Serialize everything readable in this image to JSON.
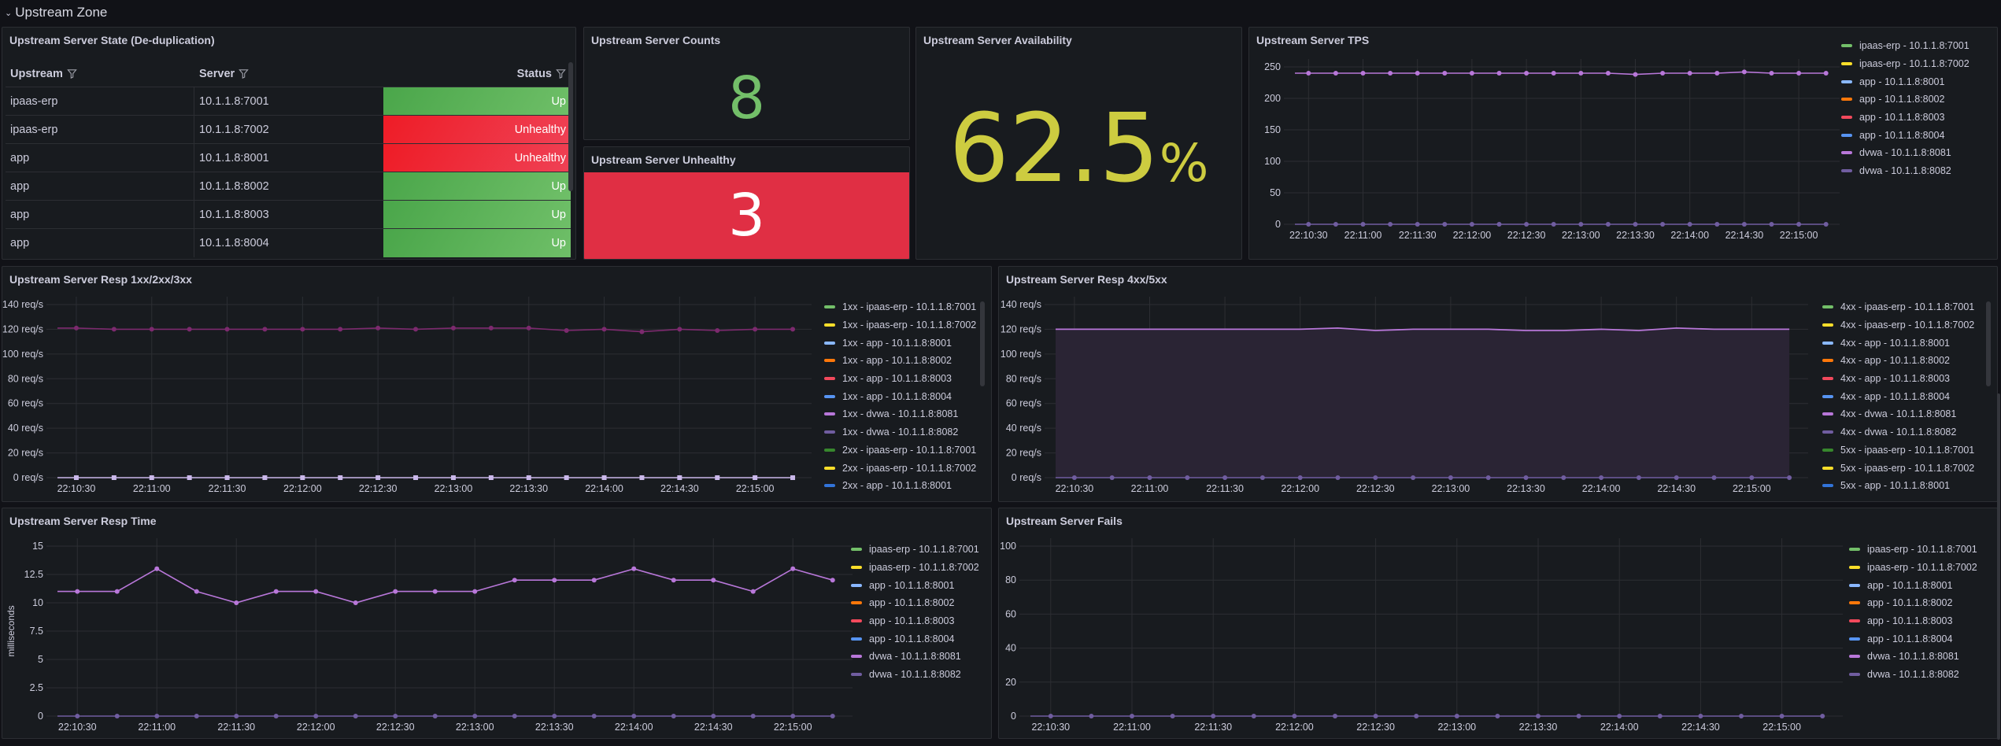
{
  "row": {
    "title": "Upstream Zone",
    "collapse_icon": "chevron-down-icon"
  },
  "colors": {
    "panel_bg": "#181b1f",
    "up": "#56a64b",
    "unhealthy": "#f2495c",
    "count_value": "#73bf69",
    "availability_value": "#cdcc40",
    "unhealthy_bg": "#e02f44"
  },
  "state_table": {
    "title": "Upstream Server State (De-duplication)",
    "columns": [
      "Upstream",
      "Server",
      "Status"
    ],
    "rows": [
      {
        "upstream": "ipaas-erp",
        "server": "10.1.1.8:7001",
        "status": "Up"
      },
      {
        "upstream": "ipaas-erp",
        "server": "10.1.1.8:7002",
        "status": "Unhealthy"
      },
      {
        "upstream": "app",
        "server": "10.1.1.8:8001",
        "status": "Unhealthy"
      },
      {
        "upstream": "app",
        "server": "10.1.1.8:8002",
        "status": "Up"
      },
      {
        "upstream": "app",
        "server": "10.1.1.8:8003",
        "status": "Up"
      },
      {
        "upstream": "app",
        "server": "10.1.1.8:8004",
        "status": "Up"
      }
    ]
  },
  "counts": {
    "title": "Upstream Server Counts",
    "value": "8"
  },
  "unhealthy": {
    "title": "Upstream Server Unhealthy",
    "value": "3"
  },
  "availability": {
    "title": "Upstream Server Availability",
    "value": "62.5",
    "unit": "%"
  },
  "chart_data": [
    {
      "id": "tps",
      "type": "line",
      "title": "Upstream Server TPS",
      "ylim": [
        0,
        250
      ],
      "yticks": [
        0,
        50,
        100,
        150,
        200,
        250
      ],
      "yunit": "",
      "ylabel": "",
      "x": [
        "22:10:30",
        "22:10:45",
        "22:11:00",
        "22:11:15",
        "22:11:30",
        "22:11:45",
        "22:12:00",
        "22:12:15",
        "22:12:30",
        "22:12:45",
        "22:13:00",
        "22:13:15",
        "22:13:30",
        "22:13:45",
        "22:14:00",
        "22:14:15",
        "22:14:30",
        "22:14:45",
        "22:15:00",
        "22:15:15"
      ],
      "xticks": [
        "22:10:30",
        "22:11:00",
        "22:11:30",
        "22:12:00",
        "22:12:30",
        "22:13:00",
        "22:13:30",
        "22:14:00",
        "22:14:30",
        "22:15:00"
      ],
      "legend": [
        {
          "name": "ipaas-erp - 10.1.1.8:7001",
          "color": "#73bf69"
        },
        {
          "name": "ipaas-erp - 10.1.1.8:7002",
          "color": "#fade2a"
        },
        {
          "name": "app - 10.1.1.8:8001",
          "color": "#8ab8ff"
        },
        {
          "name": "app - 10.1.1.8:8002",
          "color": "#ff780a"
        },
        {
          "name": "app - 10.1.1.8:8003",
          "color": "#f2495c"
        },
        {
          "name": "app - 10.1.1.8:8004",
          "color": "#5794f2"
        },
        {
          "name": "dvwa - 10.1.1.8:8081",
          "color": "#b877d9"
        },
        {
          "name": "dvwa - 10.1.1.8:8082",
          "color": "#705da0"
        }
      ],
      "series": [
        {
          "name": "dvwa - 10.1.1.8:8081",
          "color": "#b877d9",
          "values": [
            240,
            240,
            240,
            240,
            240,
            240,
            240,
            240,
            240,
            240,
            240,
            240,
            238,
            240,
            240,
            240,
            242,
            240,
            240,
            240
          ]
        },
        {
          "name": "dvwa - 10.1.1.8:8082",
          "color": "#705da0",
          "values": [
            0,
            0,
            0,
            0,
            0,
            0,
            0,
            0,
            0,
            0,
            0,
            0,
            0,
            0,
            0,
            0,
            0,
            0,
            0,
            0
          ]
        }
      ]
    },
    {
      "id": "resp123",
      "type": "line",
      "title": "Upstream Server Resp 1xx/2xx/3xx",
      "ylim": [
        0,
        140
      ],
      "yticks": [
        0,
        20,
        40,
        60,
        80,
        100,
        120,
        140
      ],
      "yunit": " req/s",
      "ylabel": "",
      "x": [
        "22:10:30",
        "22:10:45",
        "22:11:00",
        "22:11:15",
        "22:11:30",
        "22:11:45",
        "22:12:00",
        "22:12:15",
        "22:12:30",
        "22:12:45",
        "22:13:00",
        "22:13:15",
        "22:13:30",
        "22:13:45",
        "22:14:00",
        "22:14:15",
        "22:14:30",
        "22:14:45",
        "22:15:00",
        "22:15:15"
      ],
      "xticks": [
        "22:10:30",
        "22:11:00",
        "22:11:30",
        "22:12:00",
        "22:12:30",
        "22:13:00",
        "22:13:30",
        "22:14:00",
        "22:14:30",
        "22:15:00"
      ],
      "legend": [
        {
          "name": "1xx - ipaas-erp - 10.1.1.8:7001",
          "color": "#73bf69"
        },
        {
          "name": "1xx - ipaas-erp - 10.1.1.8:7002",
          "color": "#fade2a"
        },
        {
          "name": "1xx - app - 10.1.1.8:8001",
          "color": "#8ab8ff"
        },
        {
          "name": "1xx - app - 10.1.1.8:8002",
          "color": "#ff780a"
        },
        {
          "name": "1xx - app - 10.1.1.8:8003",
          "color": "#f2495c"
        },
        {
          "name": "1xx - app - 10.1.1.8:8004",
          "color": "#5794f2"
        },
        {
          "name": "1xx - dvwa - 10.1.1.8:8081",
          "color": "#b877d9"
        },
        {
          "name": "1xx - dvwa - 10.1.1.8:8082",
          "color": "#705da0"
        },
        {
          "name": "2xx - ipaas-erp - 10.1.1.8:7001",
          "color": "#37872d"
        },
        {
          "name": "2xx - ipaas-erp - 10.1.1.8:7002",
          "color": "#fade2a"
        },
        {
          "name": "2xx - app - 10.1.1.8:8001",
          "color": "#3274d9"
        }
      ],
      "series": [
        {
          "name": "2xx - dvwa - 10.1.1.8:8081",
          "color": "#7c2a6e",
          "values": [
            121,
            120,
            120,
            120,
            120,
            120,
            120,
            120,
            121,
            120,
            121,
            121,
            121,
            119,
            120,
            118,
            120,
            119,
            120,
            120
          ]
        },
        {
          "name": "1xx - dvwa - 10.1.1.8:8082",
          "color": "#cab8ea",
          "values": [
            0,
            0,
            0,
            0,
            0,
            0,
            0,
            0,
            0,
            0,
            0,
            0,
            0,
            0,
            0,
            0,
            0,
            0,
            0,
            0
          ],
          "marker": "square"
        }
      ],
      "legend_scroll": true
    },
    {
      "id": "resp45",
      "type": "area",
      "title": "Upstream Server Resp 4xx/5xx",
      "ylim": [
        0,
        140
      ],
      "yticks": [
        0,
        20,
        40,
        60,
        80,
        100,
        120,
        140
      ],
      "yunit": " req/s",
      "ylabel": "",
      "x": [
        "22:10:30",
        "22:10:45",
        "22:11:00",
        "22:11:15",
        "22:11:30",
        "22:11:45",
        "22:12:00",
        "22:12:15",
        "22:12:30",
        "22:12:45",
        "22:13:00",
        "22:13:15",
        "22:13:30",
        "22:13:45",
        "22:14:00",
        "22:14:15",
        "22:14:30",
        "22:14:45",
        "22:15:00",
        "22:15:15"
      ],
      "xticks": [
        "22:10:30",
        "22:11:00",
        "22:11:30",
        "22:12:00",
        "22:12:30",
        "22:13:00",
        "22:13:30",
        "22:14:00",
        "22:14:30",
        "22:15:00"
      ],
      "legend": [
        {
          "name": "4xx - ipaas-erp - 10.1.1.8:7001",
          "color": "#73bf69"
        },
        {
          "name": "4xx - ipaas-erp - 10.1.1.8:7002",
          "color": "#fade2a"
        },
        {
          "name": "4xx - app - 10.1.1.8:8001",
          "color": "#8ab8ff"
        },
        {
          "name": "4xx - app - 10.1.1.8:8002",
          "color": "#ff780a"
        },
        {
          "name": "4xx - app - 10.1.1.8:8003",
          "color": "#f2495c"
        },
        {
          "name": "4xx - app - 10.1.1.8:8004",
          "color": "#5794f2"
        },
        {
          "name": "4xx - dvwa - 10.1.1.8:8081",
          "color": "#b877d9"
        },
        {
          "name": "4xx - dvwa - 10.1.1.8:8082",
          "color": "#705da0"
        },
        {
          "name": "5xx - ipaas-erp - 10.1.1.8:7001",
          "color": "#37872d"
        },
        {
          "name": "5xx - ipaas-erp - 10.1.1.8:7002",
          "color": "#fade2a"
        },
        {
          "name": "5xx - app - 10.1.1.8:8001",
          "color": "#3274d9"
        }
      ],
      "series": [
        {
          "name": "4xx - dvwa - 10.1.1.8:8081",
          "color": "#b877d9",
          "values": [
            120,
            120,
            120,
            120,
            120,
            120,
            120,
            121,
            119,
            120,
            120,
            120,
            119,
            119,
            120,
            119,
            121,
            120,
            120,
            120
          ],
          "fill": "#2a2434"
        },
        {
          "name": "4xx - dvwa - 10.1.1.8:8082",
          "color": "#705da0",
          "values": [
            0,
            0,
            0,
            0,
            0,
            0,
            0,
            0,
            0,
            0,
            0,
            0,
            0,
            0,
            0,
            0,
            0,
            0,
            0,
            0
          ]
        }
      ],
      "legend_scroll": true
    },
    {
      "id": "resptime",
      "type": "line",
      "title": "Upstream Server Resp Time",
      "ylim": [
        0,
        15
      ],
      "yticks": [
        0,
        2.5,
        5,
        7.5,
        10,
        12.5,
        15
      ],
      "yunit": "",
      "ylabel": "milliseconds",
      "x": [
        "22:10:30",
        "22:10:45",
        "22:11:00",
        "22:11:15",
        "22:11:30",
        "22:11:45",
        "22:12:00",
        "22:12:15",
        "22:12:30",
        "22:12:45",
        "22:13:00",
        "22:13:15",
        "22:13:30",
        "22:13:45",
        "22:14:00",
        "22:14:15",
        "22:14:30",
        "22:14:45",
        "22:15:00",
        "22:15:15"
      ],
      "xticks": [
        "22:10:30",
        "22:11:00",
        "22:11:30",
        "22:12:00",
        "22:12:30",
        "22:13:00",
        "22:13:30",
        "22:14:00",
        "22:14:30",
        "22:15:00"
      ],
      "legend": [
        {
          "name": "ipaas-erp - 10.1.1.8:7001",
          "color": "#73bf69"
        },
        {
          "name": "ipaas-erp - 10.1.1.8:7002",
          "color": "#fade2a"
        },
        {
          "name": "app - 10.1.1.8:8001",
          "color": "#8ab8ff"
        },
        {
          "name": "app - 10.1.1.8:8002",
          "color": "#ff780a"
        },
        {
          "name": "app - 10.1.1.8:8003",
          "color": "#f2495c"
        },
        {
          "name": "app - 10.1.1.8:8004",
          "color": "#5794f2"
        },
        {
          "name": "dvwa - 10.1.1.8:8081",
          "color": "#b877d9"
        },
        {
          "name": "dvwa - 10.1.1.8:8082",
          "color": "#705da0"
        }
      ],
      "series": [
        {
          "name": "dvwa - 10.1.1.8:8081",
          "color": "#b877d9",
          "values": [
            11,
            11,
            13,
            11,
            10,
            11,
            11,
            10,
            11,
            11,
            11,
            12,
            12,
            12,
            13,
            12,
            12,
            11,
            13,
            12
          ]
        },
        {
          "name": "dvwa - 10.1.1.8:8082",
          "color": "#705da0",
          "values": [
            0,
            0,
            0,
            0,
            0,
            0,
            0,
            0,
            0,
            0,
            0,
            0,
            0,
            0,
            0,
            0,
            0,
            0,
            0,
            0
          ]
        }
      ]
    },
    {
      "id": "fails",
      "type": "line",
      "title": "Upstream Server Fails",
      "ylim": [
        0,
        100
      ],
      "yticks": [
        0,
        20,
        40,
        60,
        80,
        100
      ],
      "yunit": "",
      "ylabel": "",
      "x": [
        "22:10:30",
        "22:10:45",
        "22:11:00",
        "22:11:15",
        "22:11:30",
        "22:11:45",
        "22:12:00",
        "22:12:15",
        "22:12:30",
        "22:12:45",
        "22:13:00",
        "22:13:15",
        "22:13:30",
        "22:13:45",
        "22:14:00",
        "22:14:15",
        "22:14:30",
        "22:14:45",
        "22:15:00",
        "22:15:15"
      ],
      "xticks": [
        "22:10:30",
        "22:11:00",
        "22:11:30",
        "22:12:00",
        "22:12:30",
        "22:13:00",
        "22:13:30",
        "22:14:00",
        "22:14:30",
        "22:15:00"
      ],
      "legend": [
        {
          "name": "ipaas-erp - 10.1.1.8:7001",
          "color": "#73bf69"
        },
        {
          "name": "ipaas-erp - 10.1.1.8:7002",
          "color": "#fade2a"
        },
        {
          "name": "app - 10.1.1.8:8001",
          "color": "#8ab8ff"
        },
        {
          "name": "app - 10.1.1.8:8002",
          "color": "#ff780a"
        },
        {
          "name": "app - 10.1.1.8:8003",
          "color": "#f2495c"
        },
        {
          "name": "app - 10.1.1.8:8004",
          "color": "#5794f2"
        },
        {
          "name": "dvwa - 10.1.1.8:8081",
          "color": "#b877d9"
        },
        {
          "name": "dvwa - 10.1.1.8:8082",
          "color": "#705da0"
        }
      ],
      "series": [
        {
          "name": "dvwa - 10.1.1.8:8082",
          "color": "#705da0",
          "values": [
            0,
            0,
            0,
            0,
            0,
            0,
            0,
            0,
            0,
            0,
            0,
            0,
            0,
            0,
            0,
            0,
            0,
            0,
            0,
            0
          ]
        }
      ]
    }
  ]
}
